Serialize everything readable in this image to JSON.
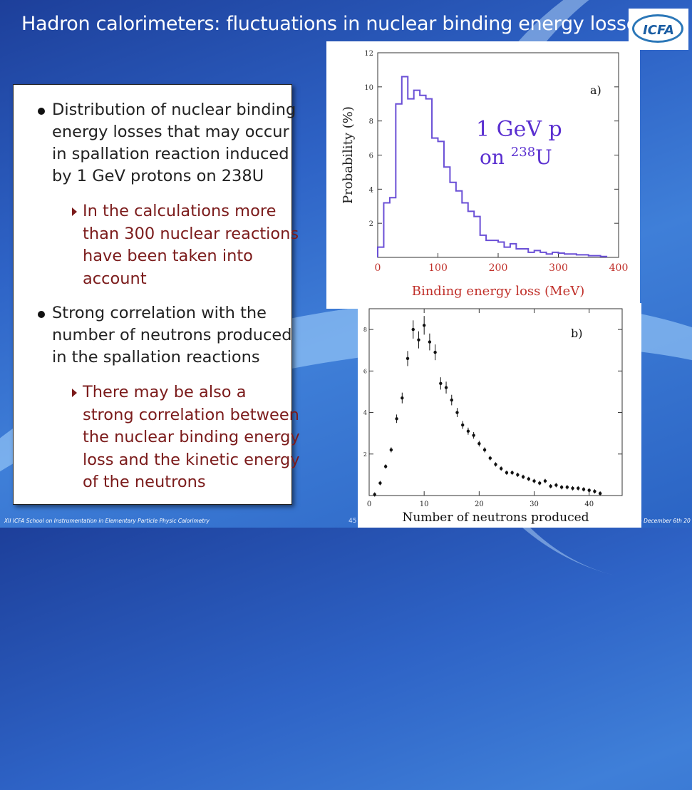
{
  "slide": {
    "title": "Hadron calorimeters: fluctuations in nuclear binding energy losses",
    "logo_text": "ICFA",
    "bullets": [
      {
        "text": "Distribution of nuclear binding energy losses that may occur in spallation reaction induced by 1 GeV protons on 238U",
        "sub": "In the calculations more than 300 nuclear reactions have been taken into account"
      },
      {
        "text": "Strong correlation with the number of neutrons produced in the spallation reactions",
        "sub": "There may be also a strong correlation between the nuclear binding energy loss and  the kinetic energy of the neutrons"
      }
    ],
    "footer_left": "XII ICFA School on Instrumentation in Elementary Particle Physic Calorimetry",
    "footer_page": "45",
    "footer_right": "- December 6th 20",
    "colors": {
      "bg": "#2e63c6",
      "title": "#ffffff",
      "sub_bullet": "#7b1b1b",
      "hist": "#6a4fd6",
      "axis_label_a": "#c0302a"
    }
  },
  "chart_data": [
    {
      "type": "histogram",
      "panel_label": "a)",
      "annotation_line1": "1 GeV p",
      "annotation_on": "on",
      "annotation_sup": "238",
      "annotation_u": "U",
      "xlabel": "Binding energy loss (MeV)",
      "ylabel": "Probability (%)",
      "xlim": [
        0,
        400
      ],
      "ylim": [
        0,
        12
      ],
      "xticks": [
        0,
        100,
        200,
        300,
        400
      ],
      "yticks": [
        2,
        4,
        6,
        8,
        10,
        12
      ],
      "bin_width": 10,
      "bin_edges_start": 0,
      "values": [
        0.6,
        3.2,
        3.5,
        9.0,
        10.6,
        9.3,
        9.8,
        9.5,
        9.3,
        7.0,
        6.8,
        5.3,
        4.4,
        3.9,
        3.2,
        2.7,
        2.4,
        1.3,
        1.0,
        1.0,
        0.9,
        0.6,
        0.8,
        0.5,
        0.5,
        0.3,
        0.4,
        0.3,
        0.2,
        0.3,
        0.25,
        0.2,
        0.2,
        0.15,
        0.15,
        0.1,
        0.1,
        0.05
      ]
    },
    {
      "type": "scatter",
      "panel_label": "b)",
      "xlabel": "Number of neutrons produced",
      "ylabel": "",
      "xlim": [
        0,
        46
      ],
      "ylim": [
        0,
        9
      ],
      "xticks": [
        0,
        10,
        20,
        30,
        40
      ],
      "yticks": [
        2,
        4,
        6,
        8
      ],
      "x": [
        1,
        2,
        3,
        4,
        5,
        6,
        7,
        8,
        9,
        10,
        11,
        12,
        13,
        14,
        15,
        16,
        17,
        18,
        19,
        20,
        21,
        22,
        23,
        24,
        25,
        26,
        27,
        28,
        29,
        30,
        31,
        32,
        33,
        34,
        35,
        36,
        37,
        38,
        39,
        40,
        41,
        42
      ],
      "y": [
        0.05,
        0.6,
        1.4,
        2.2,
        3.7,
        4.7,
        6.6,
        8.0,
        7.5,
        8.2,
        7.4,
        6.9,
        5.4,
        5.2,
        4.6,
        4.0,
        3.4,
        3.1,
        2.9,
        2.5,
        2.2,
        1.8,
        1.5,
        1.3,
        1.1,
        1.1,
        1.0,
        0.9,
        0.8,
        0.7,
        0.6,
        0.7,
        0.45,
        0.5,
        0.4,
        0.4,
        0.35,
        0.35,
        0.3,
        0.25,
        0.2,
        0.1
      ]
    }
  ]
}
